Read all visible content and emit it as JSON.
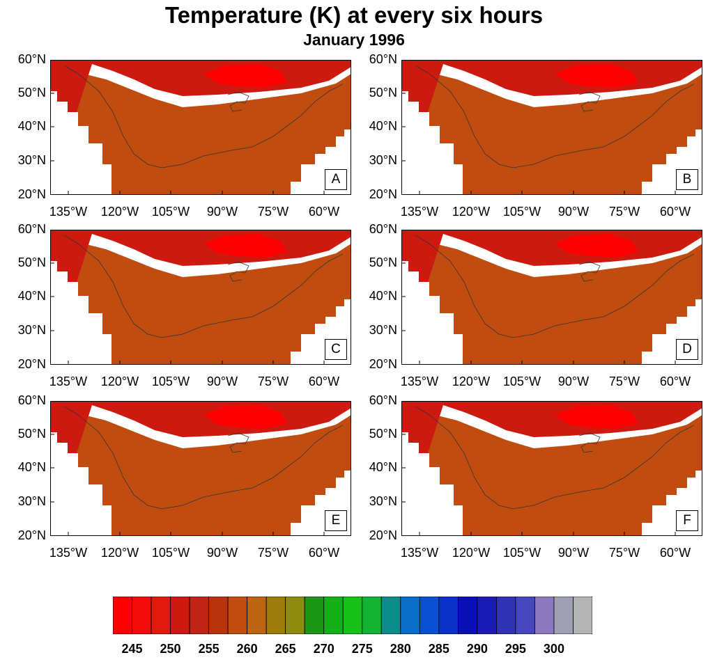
{
  "title": "Temperature (K) at every six hours",
  "subtitle": "January 1996",
  "lat_labels": [
    "60°N",
    "50°N",
    "40°N",
    "30°N",
    "20°N"
  ],
  "lon_labels": [
    "135°W",
    "120°W",
    "105°W",
    "90°W",
    "75°W",
    "60°W"
  ],
  "panels": [
    {
      "label": "A"
    },
    {
      "label": "B"
    },
    {
      "label": "C"
    },
    {
      "label": "D"
    },
    {
      "label": "E"
    },
    {
      "label": "F"
    }
  ],
  "colorbar": {
    "labels": [
      "245",
      "250",
      "255",
      "260",
      "265",
      "270",
      "275",
      "280",
      "285",
      "290",
      "295",
      "300"
    ],
    "colors": [
      "#ff0000",
      "#f40b0b",
      "#e21a0e",
      "#cc1a10",
      "#bf2414",
      "#b8320e",
      "#c04d0f",
      "#bb6414",
      "#9c7b0a",
      "#8e8c0c",
      "#1a9614",
      "#13b018",
      "#16c21a",
      "#12b232",
      "#0e8c8c",
      "#0a6ec8",
      "#0a50d2",
      "#0a32c8",
      "#0a10b4",
      "#1a1ab4",
      "#3232b4",
      "#4646be",
      "#8c78be",
      "#a0a0b4",
      "#b4b4b4"
    ]
  }
}
